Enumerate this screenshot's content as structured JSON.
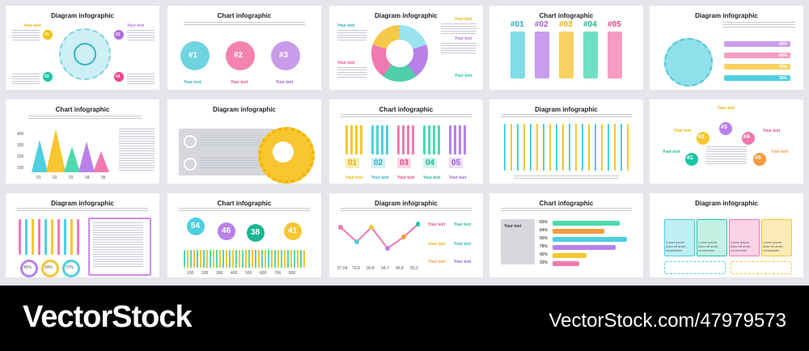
{
  "slides": {
    "s1": {
      "title": "Diagram infographic",
      "badges": [
        "01",
        "02",
        "03",
        "04"
      ],
      "your_text": "Your text"
    },
    "s2": {
      "title": "Chart infographic",
      "badges": [
        "#1",
        "#2",
        "#3"
      ],
      "your_text": "Your text"
    },
    "s3": {
      "title": "Diagram infographic",
      "your_text": "Your text"
    },
    "s4": {
      "title": "Chart infographic",
      "labels": [
        "#01",
        "#02",
        "#03",
        "#04",
        "#05"
      ]
    },
    "s5": {
      "title": "Diagram infographic",
      "percents": [
        "60%",
        "80%",
        "30%",
        "90%"
      ]
    },
    "s6": {
      "title": "Chart infographic",
      "yticks": [
        "400",
        "300",
        "200",
        "100"
      ],
      "xticks": [
        "01",
        "02",
        "03",
        "04",
        "05"
      ]
    },
    "s7": {
      "title": "Diagram infographic"
    },
    "s8": {
      "title": "Chart infographic",
      "labels": [
        "01",
        "02",
        "03",
        "04",
        "05"
      ],
      "your_text": "Your text"
    },
    "s9": {
      "title": "Diagram infographic"
    },
    "s10": {
      "title": "Chart infographic",
      "your_text": "Your text",
      "badges": [
        "#1",
        "#2",
        "#3",
        "#4",
        "#5"
      ]
    },
    "s11": {
      "title": "Diagram infographic",
      "donuts": [
        "45%",
        "64%",
        "37%"
      ]
    },
    "s12": {
      "title": "Chart infographic",
      "pins": [
        "54",
        "46",
        "38",
        "41"
      ],
      "xticks": [
        "100",
        "200",
        "300",
        "400",
        "500",
        "600",
        "700",
        "800"
      ]
    },
    "s13": {
      "title": "Diagram infographic",
      "values": [
        "97,54",
        "73,9",
        "90,8",
        "34,7",
        "46,8",
        "93,3"
      ],
      "your_text": "Your text"
    },
    "s14": {
      "title": "Chart infographic",
      "your_text": "Your text",
      "percents": [
        "83%",
        "64%",
        "92%",
        "78%",
        "42%",
        "33%"
      ]
    },
    "s15": {
      "title": "Diagram infographic",
      "card_text": "Lorem ipsum dolor sit amet, consectetur"
    }
  },
  "footer": {
    "brand": "VectorStock",
    "image_id": "VectorStock.com/47979573"
  }
}
